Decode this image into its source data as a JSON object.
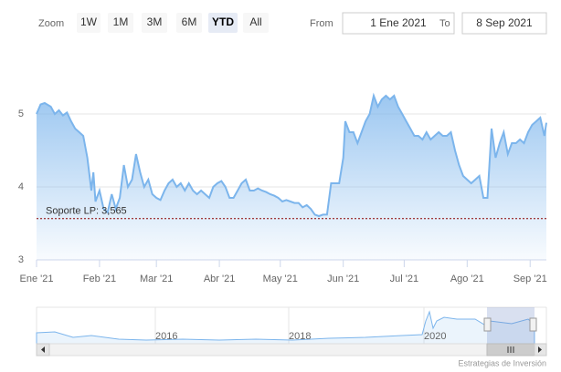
{
  "range_selector": {
    "label": "Zoom",
    "buttons": [
      "1W",
      "1M",
      "3M",
      "6M",
      "YTD",
      "All"
    ],
    "selected": 4,
    "from_label": "From",
    "from": "1 Ene 2021",
    "to_label": "To",
    "to": "8 Sep 2021"
  },
  "chart_data": {
    "type": "area",
    "color": "#7cb5ec",
    "x": [
      1,
      3,
      5,
      8,
      10,
      12,
      14,
      16,
      18,
      20,
      22,
      24,
      26,
      28,
      29,
      30,
      32,
      34,
      36,
      38,
      40,
      42,
      44,
      46,
      48,
      50,
      52,
      54,
      56,
      58,
      60,
      62,
      64,
      66,
      68,
      70,
      72,
      74,
      76,
      78,
      80,
      82,
      84,
      86,
      88,
      90,
      92,
      94,
      96,
      98,
      100,
      102,
      104,
      106,
      108,
      110,
      112,
      114,
      116,
      118,
      120,
      122,
      124,
      126,
      128,
      130,
      132,
      134,
      136,
      138,
      140,
      142,
      144,
      146,
      148,
      150,
      152,
      153,
      155,
      157,
      159,
      161,
      163,
      165,
      167,
      169,
      171,
      173,
      175,
      177,
      179,
      181,
      183,
      185,
      187,
      189,
      191,
      193,
      195,
      197,
      199,
      201,
      203,
      205,
      207,
      209,
      211,
      213,
      215,
      217,
      219,
      221,
      223,
      225,
      227,
      229,
      231,
      233,
      235,
      237,
      239,
      241,
      243,
      245,
      247,
      249,
      251,
      252
    ],
    "values": [
      5.0,
      5.13,
      5.15,
      5.1,
      5.0,
      5.05,
      4.98,
      5.02,
      4.9,
      4.8,
      4.75,
      4.7,
      4.4,
      3.95,
      4.2,
      3.8,
      3.95,
      3.7,
      3.65,
      3.9,
      3.7,
      3.85,
      4.3,
      4.0,
      4.1,
      4.45,
      4.2,
      4.0,
      4.1,
      3.9,
      3.85,
      3.82,
      3.95,
      4.05,
      4.1,
      4.0,
      4.05,
      3.95,
      4.05,
      3.95,
      3.9,
      3.95,
      3.9,
      3.85,
      4.0,
      4.05,
      4.08,
      4.0,
      3.85,
      3.85,
      3.95,
      4.05,
      4.1,
      3.95,
      3.95,
      3.98,
      3.95,
      3.93,
      3.9,
      3.88,
      3.85,
      3.8,
      3.82,
      3.8,
      3.78,
      3.78,
      3.72,
      3.75,
      3.7,
      3.62,
      3.6,
      3.62,
      3.62,
      4.05,
      4.05,
      4.05,
      4.4,
      4.9,
      4.75,
      4.75,
      4.6,
      4.75,
      4.9,
      5.0,
      5.25,
      5.1,
      5.2,
      5.25,
      5.2,
      5.25,
      5.1,
      5.0,
      4.9,
      4.8,
      4.7,
      4.7,
      4.65,
      4.75,
      4.65,
      4.7,
      4.75,
      4.7,
      4.7,
      4.75,
      4.5,
      4.3,
      4.15,
      4.1,
      4.05,
      4.1,
      4.15,
      3.85,
      3.85,
      4.8,
      4.4,
      4.6,
      4.75,
      4.45,
      4.6,
      4.6,
      4.65,
      4.6,
      4.75,
      4.85,
      4.9,
      4.95,
      4.7,
      4.88
    ],
    "xlim": [
      1,
      252
    ],
    "xticks": [
      {
        "value": 1,
        "label": "Ene '21"
      },
      {
        "value": 32,
        "label": "Feb '21"
      },
      {
        "value": 60,
        "label": "Mar '21"
      },
      {
        "value": 91,
        "label": "Abr '21"
      },
      {
        "value": 121,
        "label": "May '21"
      },
      {
        "value": 152,
        "label": "Jun '21"
      },
      {
        "value": 182,
        "label": "Jul '21"
      },
      {
        "value": 213,
        "label": "Ago '21"
      },
      {
        "value": 244,
        "label": "Sep '21"
      }
    ],
    "ylim": [
      3,
      6
    ],
    "yticks": [
      3,
      4,
      5
    ],
    "grid": true,
    "plot_line": {
      "value": 3.565,
      "label": "Soporte LP: 3,565",
      "color": "#8b0000"
    }
  },
  "navigator": {
    "labels": [
      "2016",
      "2018",
      "2020"
    ]
  },
  "credits": "Estrategias de Inversión"
}
